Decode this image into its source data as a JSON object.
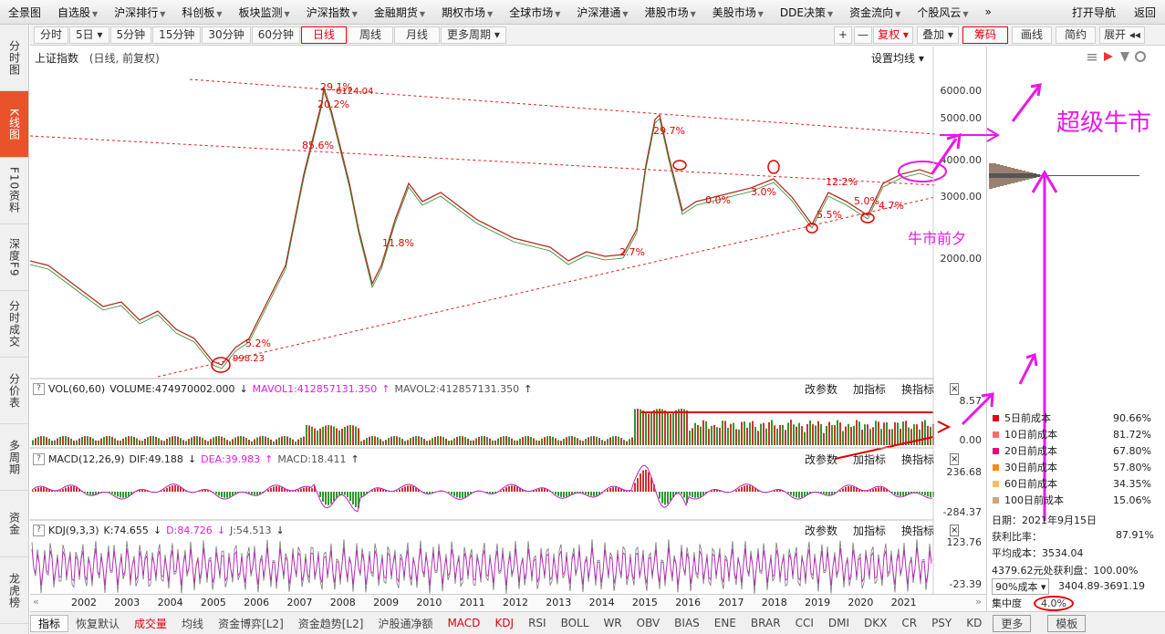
{
  "topnav": {
    "items": [
      "全景图",
      "自选股",
      "沪深排行",
      "科创板",
      "板块监测",
      "沪深指数",
      "金融期货",
      "期权市场",
      "全球市场",
      "沪深港通",
      "港股市场",
      "美股市场",
      "DDE决策",
      "资金流向",
      "个股风云"
    ],
    "more": "»",
    "right": [
      "打开导航",
      "返回"
    ]
  },
  "sidebar": [
    {
      "label": "分时图"
    },
    {
      "label": "K线图",
      "active": true
    },
    {
      "label": "F10资料"
    },
    {
      "label": "深度F9"
    },
    {
      "label": "分时成交"
    },
    {
      "label": "分价表"
    },
    {
      "label": "多周期"
    },
    {
      "label": "资金"
    },
    {
      "label": "龙虎榜"
    }
  ],
  "periods": [
    {
      "label": "分时"
    },
    {
      "label": "5日 ▾"
    },
    {
      "label": "5分钟"
    },
    {
      "label": "15分钟"
    },
    {
      "label": "30分钟"
    },
    {
      "label": "60分钟"
    },
    {
      "label": "日线",
      "active": true
    },
    {
      "label": "周线"
    },
    {
      "label": "月线"
    },
    {
      "label": "更多周期 ▾"
    }
  ],
  "toolbar": {
    "plus": "+",
    "minus": "—",
    "fq": "复权 ▾",
    "overlay": "叠加 ▾",
    "chips": "筹码",
    "draw": "画线",
    "simple": "简约",
    "expand": "展开 ◂◂"
  },
  "chart": {
    "title": "上证指数",
    "subtitle": "(日线, 前复权)",
    "set_ma": "设置均线 ▾",
    "y_ticks": [
      "6000.00",
      "5000.00",
      "4000.00",
      "3000.00",
      "2000.00"
    ],
    "peak_label": "6124.04",
    "low_label": "998.23",
    "pct_labels": [
      "29.1%",
      "20.2%",
      "85.6%",
      "5.2%",
      "11.8%",
      "29.7%",
      "2.7%",
      "12.2%",
      "5.5%",
      "5.0%",
      "4.7%",
      "3.0%",
      "0.0%"
    ]
  },
  "vol": {
    "name": "VOL(60,60)",
    "volume": "VOLUME:474970002.000",
    "arrow": "↓",
    "mavol1": "MAVOL1:412857131.350",
    "mavol2": "MAVOL2:412857131.350",
    "top": "8.57",
    "bottom": "0.00"
  },
  "macd": {
    "name": "MACD(12,26,9)",
    "dif": "DIF:49.188",
    "dea": "DEA:39.983",
    "macd": "MACD:18.411",
    "top": "236.68",
    "bottom": "-284.37"
  },
  "kdj": {
    "name": "KDJ(9,3,3)",
    "k": "K:74.655",
    "d": "D:84.726",
    "j": "J:54.513",
    "top": "123.76",
    "bottom": "-23.39"
  },
  "ind_actions": {
    "a": "改参数",
    "b": "加指标",
    "c": "换指标",
    "x": "×"
  },
  "years": [
    "2002",
    "2003",
    "2004",
    "2005",
    "2006",
    "2007",
    "2008",
    "2009",
    "2010",
    "2011",
    "2012",
    "2013",
    "2014",
    "2015",
    "2016",
    "2017",
    "2018",
    "2019",
    "2020",
    "2021"
  ],
  "annotations": {
    "super_bull": "超级牛市",
    "eve": "牛市前夕"
  },
  "costs": [
    {
      "label": "5日前成本",
      "value": "90.66%",
      "color": "#e0001a"
    },
    {
      "label": "10日前成本",
      "value": "81.72%",
      "color": "#ff6a6a"
    },
    {
      "label": "20日前成本",
      "value": "67.80%",
      "color": "#e8007a"
    },
    {
      "label": "30日前成本",
      "value": "57.80%",
      "color": "#ff8a00"
    },
    {
      "label": "60日前成本",
      "value": "34.35%",
      "color": "#f0c060"
    },
    {
      "label": "100日前成本",
      "value": "15.06%",
      "color": "#c8a878"
    }
  ],
  "info": {
    "date": "日期：2021年9月15日",
    "profit_label": "获利比率：",
    "profit": "87.91%",
    "avg_cost": "平均成本：3534.04",
    "profit_line": "4379.62元处获利盘：100.00%",
    "cost90": "90%成本",
    "cost90_range": "3404.89-3691.19",
    "concentration_label": "集中度",
    "concentration": "4.0%"
  },
  "bottom": {
    "items": [
      "指标",
      "恢复默认",
      "成交量",
      "均线",
      "资金博弈[L2]",
      "资金趋势[L2]",
      "沪股通净额",
      "MACD",
      "KDJ",
      "RSI",
      "BOLL",
      "WR",
      "OBV",
      "BIAS",
      "ENE",
      "BRAR",
      "CCI",
      "DMI",
      "DKX",
      "CR",
      "PSY",
      "KD",
      "更多",
      "模板"
    ]
  }
}
